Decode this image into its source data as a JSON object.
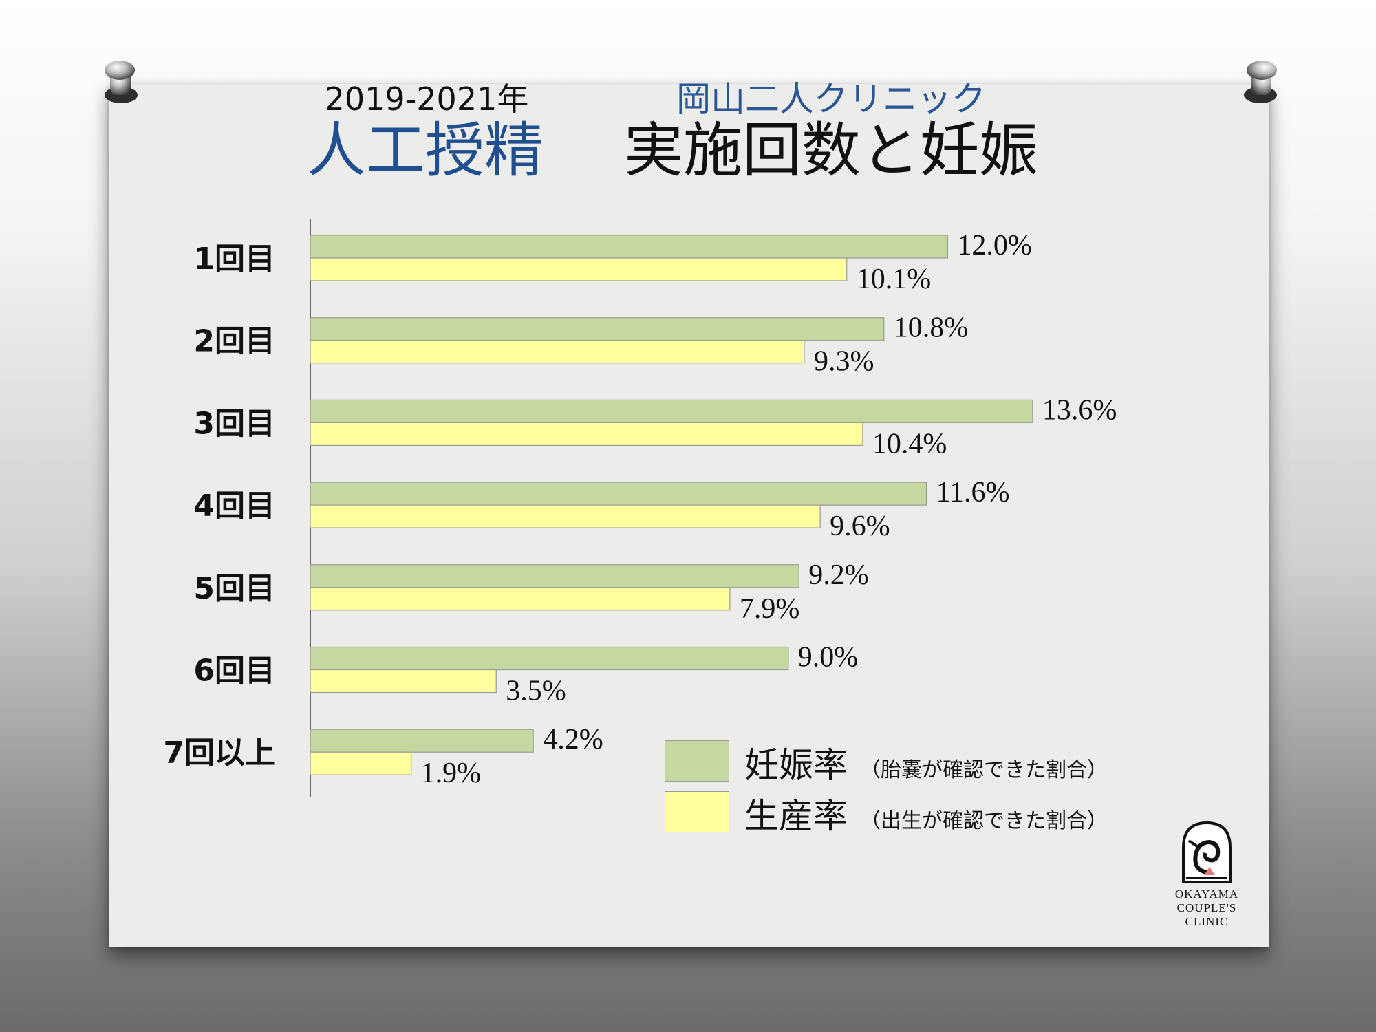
{
  "header": {
    "year": "2019-2021年",
    "clinic": "岡山二人クリニック",
    "title_part1": "人工授精",
    "title_part2": "実施回数と妊娠"
  },
  "legend": [
    {
      "label": "妊娠率",
      "note": "（胎嚢が確認できた割合）",
      "color": "#c5d8a0"
    },
    {
      "label": "生産率",
      "note": "（出生が確認できた割合）",
      "color": "#ffff9e"
    }
  ],
  "logo": {
    "line1": "OKAYAMA",
    "line2": "COUPLE'S",
    "line3": "CLINIC"
  },
  "colors": {
    "pregnancy": "#c5d8a0",
    "birth": "#ffff9e",
    "bar_border": "#9a9a9a"
  },
  "chart_data": {
    "type": "bar",
    "orientation": "horizontal",
    "categories": [
      "1回目",
      "2回目",
      "3回目",
      "4回目",
      "5回目",
      "6回目",
      "7回以上"
    ],
    "series": [
      {
        "name": "妊娠率",
        "values": [
          12.0,
          10.8,
          13.6,
          11.6,
          9.2,
          9.0,
          4.2
        ],
        "labels": [
          "12.0%",
          "10.8%",
          "13.6%",
          "11.6%",
          "9.2%",
          "9.0%",
          "4.2%"
        ]
      },
      {
        "name": "生産率",
        "values": [
          10.1,
          9.3,
          10.4,
          9.6,
          7.9,
          3.5,
          1.9
        ],
        "labels": [
          "10.1%",
          "9.3%",
          "10.4%",
          "9.6%",
          "7.9%",
          "3.5%",
          "1.9%"
        ]
      }
    ],
    "unit": "%",
    "xlim": [
      0,
      14
    ],
    "grid": false,
    "legend_position": "bottom-right"
  }
}
